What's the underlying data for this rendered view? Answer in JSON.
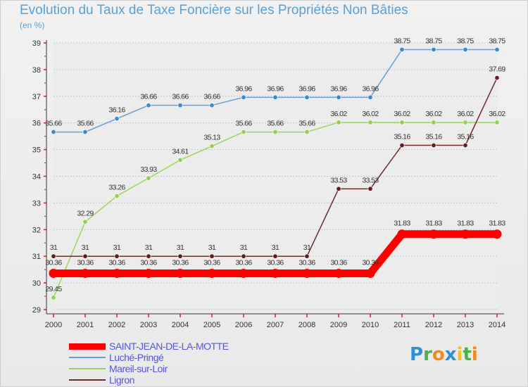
{
  "header": {
    "title": "Evolution du Taux de Taxe Foncière sur les Propriétés Non Bâties",
    "subtitle": "(en %)"
  },
  "logo": {
    "letters": [
      "P",
      "r",
      "o",
      "x",
      "i",
      "t",
      "i"
    ],
    "colors": [
      "#2e8fd6",
      "#4db04a",
      "#f08a1c",
      "#2e8fd6",
      "#f6c21e",
      "#4db04a",
      "#f08a1c"
    ]
  },
  "chart_data": {
    "type": "line",
    "title": "Evolution du Taux de Taxe Foncière sur les Propriétés Non Bâties",
    "ylabel": "(en %)",
    "xlabel": "",
    "x": [
      "2000",
      "2001",
      "2002",
      "2003",
      "2004",
      "2005",
      "2006",
      "2007",
      "2008",
      "2009",
      "2010",
      "2011",
      "2012",
      "2013",
      "2014"
    ],
    "ylim": [
      29,
      39
    ],
    "yticks": [
      "29",
      "30",
      "31",
      "32",
      "33",
      "34",
      "35",
      "36",
      "37",
      "38",
      "39"
    ],
    "grid": "horizontal",
    "legend_position": "bottom-left",
    "series": [
      {
        "name": "SAINT-JEAN-DE-LA-MOTTE",
        "color": "#ff0000",
        "emphasis": true,
        "values": [
          30.36,
          30.36,
          30.36,
          30.36,
          30.36,
          30.36,
          30.36,
          30.36,
          30.36,
          30.36,
          30.36,
          31.83,
          31.83,
          31.83,
          31.83
        ],
        "labels": [
          "30.36",
          "30.36",
          "30.36",
          "30.36",
          "30.36",
          "30.36",
          "30.36",
          "30.36",
          "30.36",
          "30.36",
          "30.36",
          "31.83",
          "31.83",
          "31.83",
          "31.83"
        ]
      },
      {
        "name": "Luché-Pringé",
        "color": "#6a9ed2",
        "marker": "#3d88c9",
        "values": [
          35.66,
          35.66,
          36.16,
          36.66,
          36.66,
          36.66,
          36.96,
          36.96,
          36.96,
          36.96,
          36.96,
          38.75,
          38.75,
          38.75,
          38.75
        ],
        "labels": [
          "35.66",
          "35.66",
          "36.16",
          "36.66",
          "36.66",
          "36.66",
          "36.96",
          "36.96",
          "36.96",
          "36.96",
          "36.96",
          "38.75",
          "38.75",
          "38.75",
          "38.75"
        ]
      },
      {
        "name": "Mareil-sur-Loir",
        "color": "#99d65b",
        "marker": "#8fd04c",
        "values": [
          29.45,
          32.29,
          33.26,
          33.93,
          34.61,
          35.13,
          35.66,
          35.66,
          35.66,
          36.02,
          36.02,
          36.02,
          36.02,
          36.02,
          36.02
        ],
        "labels": [
          "29.45",
          "32.29",
          "33.26",
          "33.93",
          "34.61",
          "35.13",
          "35.66",
          "35.66",
          "35.66",
          "36.02",
          "36.02",
          "36.02",
          "36.02",
          "36.02",
          "36.02"
        ]
      },
      {
        "name": "Ligron",
        "color": "#6b2b2b",
        "marker": "#5e1f1f",
        "values": [
          31,
          31,
          31,
          31,
          31,
          31,
          31,
          31,
          31,
          33.53,
          33.53,
          35.16,
          35.16,
          35.16,
          37.69
        ],
        "labels": [
          "31",
          "31",
          "31",
          "31",
          "31",
          "31",
          "31",
          "31",
          "31",
          "33.53",
          "33.53",
          "35.16",
          "35.16",
          "35.16",
          "37.69"
        ]
      }
    ]
  }
}
